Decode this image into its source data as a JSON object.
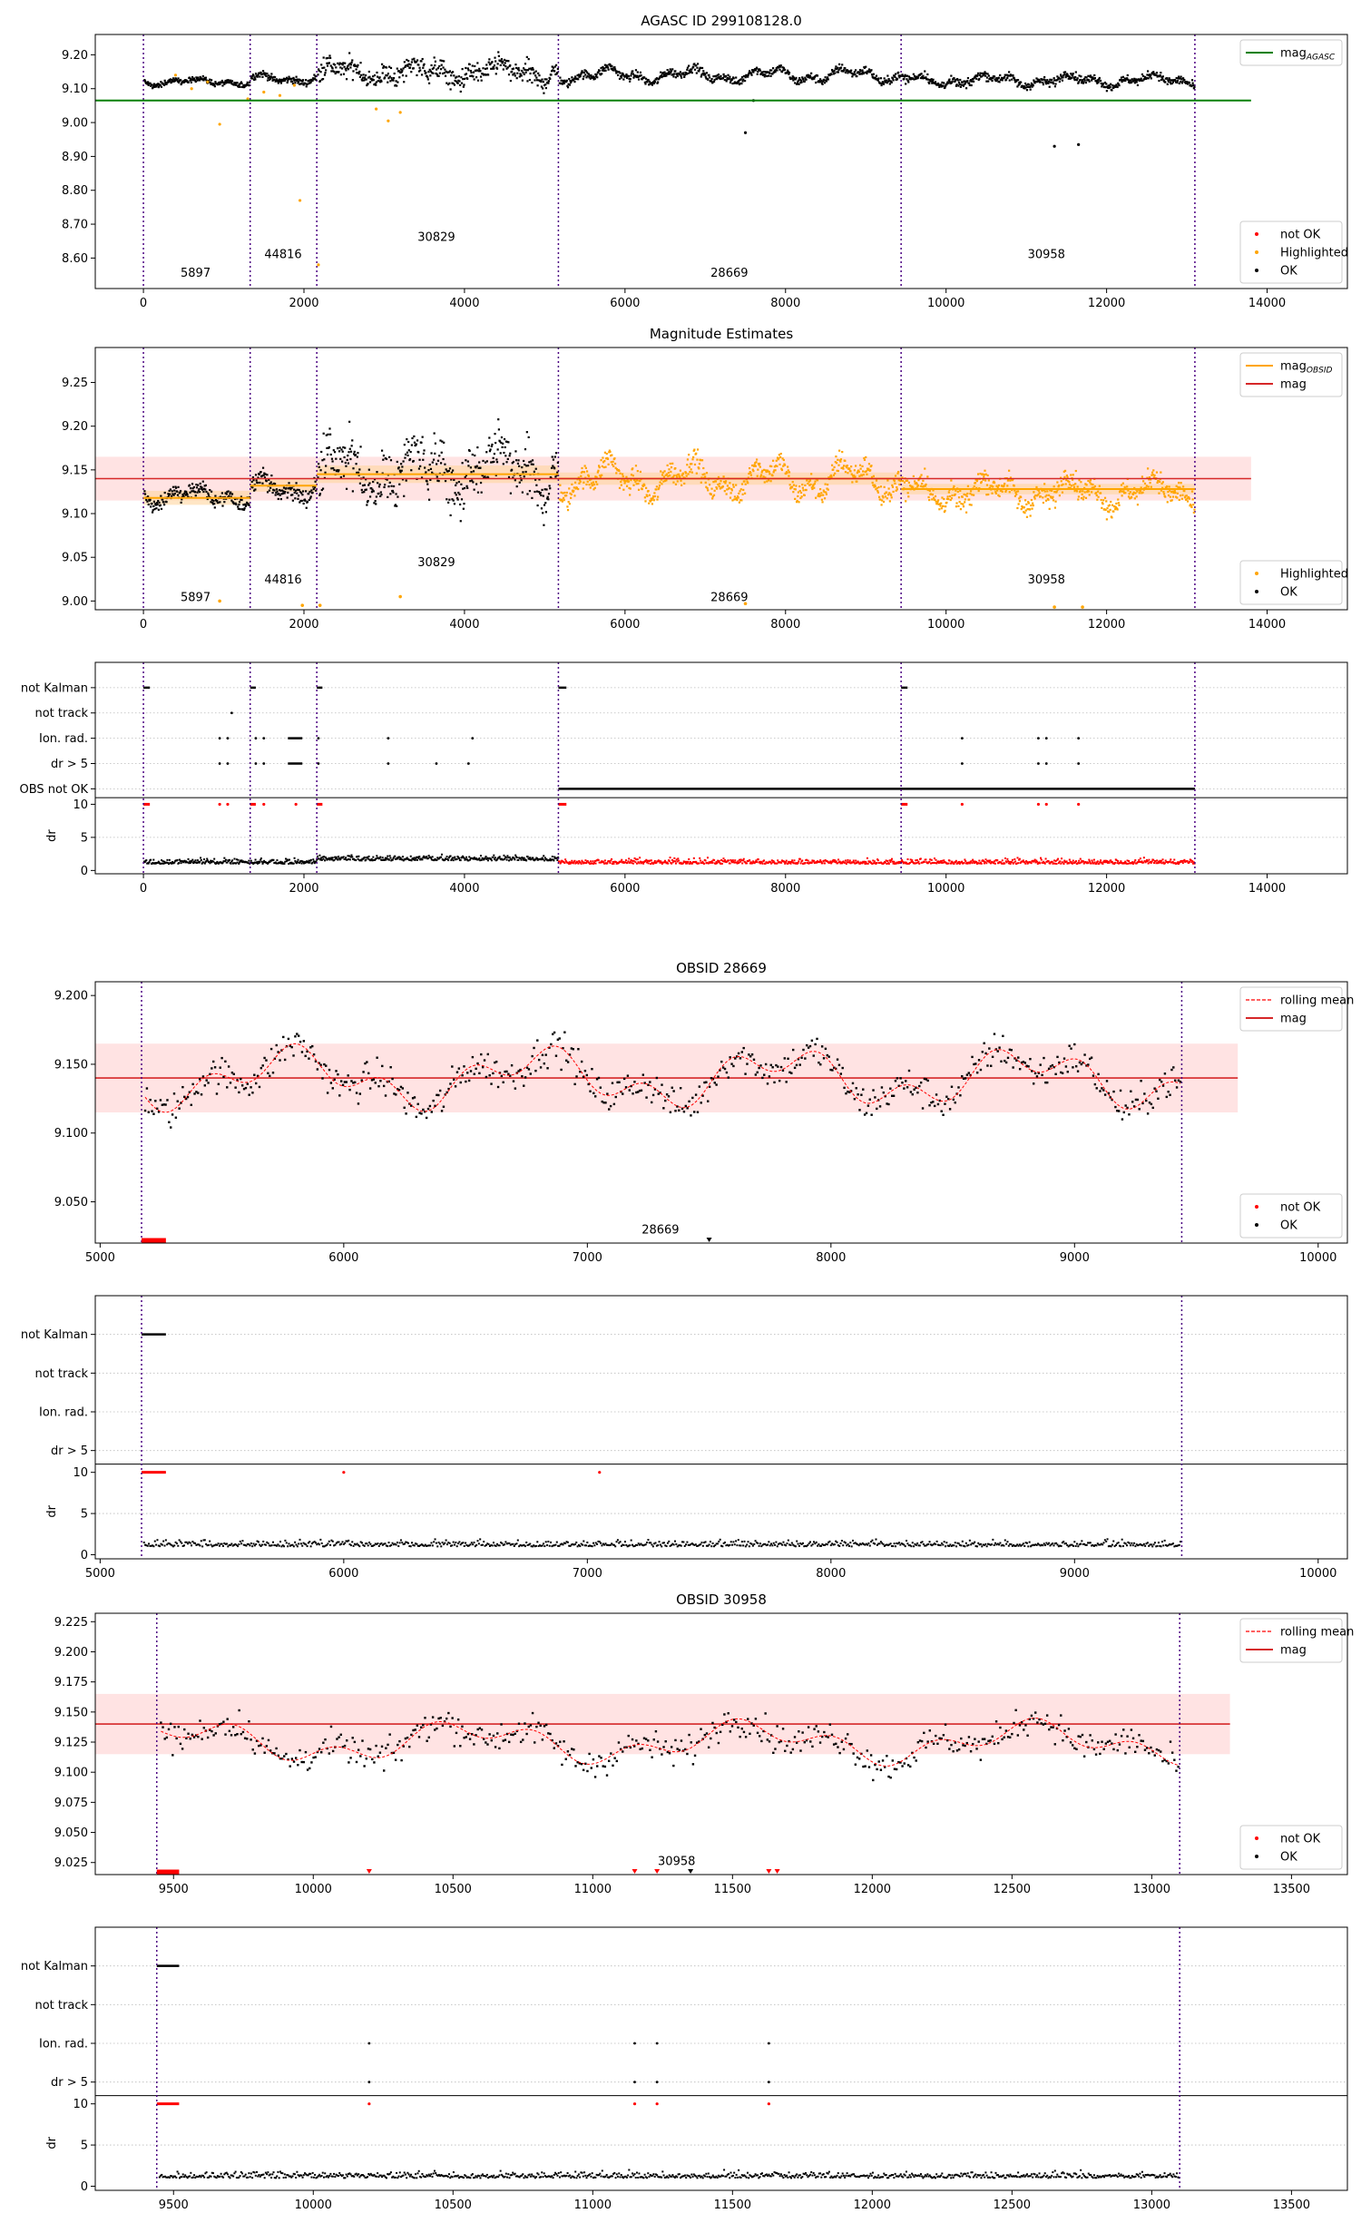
{
  "figure": {
    "title_agasc": "AGASC ID 299108128.0"
  },
  "colors": {
    "ok": "#000000",
    "not_ok": "#ff0000",
    "highlighted": "#ffa500",
    "agasc_line": "#008000",
    "mag_line": "#d62728",
    "obs_boundary": "#4b0082",
    "band": "#ffcccc"
  },
  "observations": [
    {
      "obsid": "5897",
      "start": 0,
      "end": 1330
    },
    {
      "obsid": "44816",
      "start": 1330,
      "end": 2160
    },
    {
      "obsid": "30829",
      "start": 2160,
      "end": 5170
    },
    {
      "obsid": "28669",
      "start": 5170,
      "end": 9440
    },
    {
      "obsid": "30958",
      "start": 9440,
      "end": 13100
    }
  ],
  "chart_data": [
    {
      "type": "scatter",
      "panel": "agasc",
      "title": "AGASC ID 299108128.0",
      "xlim": [
        -600,
        15000
      ],
      "ylim": [
        8.51,
        9.26
      ],
      "xticks": [
        0,
        2000,
        4000,
        6000,
        8000,
        10000,
        12000,
        14000
      ],
      "yticks": [
        8.6,
        8.7,
        8.8,
        8.9,
        9.0,
        9.1,
        9.2
      ],
      "legend_top": {
        "position": "top-right",
        "entries": [
          {
            "label": "mag",
            "sub": "AGASC",
            "kind": "line",
            "color": "#008000"
          }
        ]
      },
      "legend_bottom": {
        "position": "bottom-right",
        "entries": [
          {
            "label": "not OK",
            "kind": "dot",
            "color": "#ff0000"
          },
          {
            "label": "Highlighted",
            "kind": "dot",
            "color": "#ffa500"
          },
          {
            "label": "OK",
            "kind": "dot",
            "color": "#000000"
          }
        ]
      },
      "mag_agasc": 9.065,
      "obs_labels": [
        {
          "text": "5897",
          "x": 650,
          "y": 8.545
        },
        {
          "text": "44816",
          "x": 1740,
          "y": 8.6
        },
        {
          "text": "30829",
          "x": 3650,
          "y": 8.65
        },
        {
          "text": "28669",
          "x": 7300,
          "y": 8.545
        },
        {
          "text": "30958",
          "x": 11250,
          "y": 8.6
        }
      ],
      "series_segments": [
        {
          "start": 0,
          "end": 1330,
          "base": 9.12,
          "amp": 0.012,
          "noise": 0.012
        },
        {
          "start": 1330,
          "end": 2160,
          "base": 9.13,
          "amp": 0.015,
          "noise": 0.015
        },
        {
          "start": 2160,
          "end": 5170,
          "base": 9.148,
          "amp": 0.03,
          "noise": 0.045
        },
        {
          "start": 5170,
          "end": 9440,
          "base": 9.14,
          "amp": 0.025,
          "noise": 0.018
        },
        {
          "start": 9440,
          "end": 13100,
          "base": 9.125,
          "amp": 0.02,
          "noise": 0.018
        }
      ],
      "outliers_highlighted": [
        [
          400,
          9.14
        ],
        [
          600,
          9.1
        ],
        [
          800,
          9.12
        ],
        [
          950,
          8.995
        ],
        [
          1300,
          9.07
        ],
        [
          1500,
          9.09
        ],
        [
          1700,
          9.08
        ],
        [
          1880,
          9.11
        ],
        [
          1950,
          8.77
        ],
        [
          2180,
          8.58
        ],
        [
          2900,
          9.04
        ],
        [
          3200,
          9.03
        ],
        [
          3050,
          9.005
        ]
      ],
      "outliers_ok": [
        [
          7500,
          8.97
        ],
        [
          7600,
          9.065
        ],
        [
          11350,
          8.93
        ],
        [
          11650,
          8.935
        ]
      ]
    },
    {
      "type": "scatter",
      "panel": "estimates",
      "title": "Magnitude Estimates",
      "xlim": [
        -600,
        15000
      ],
      "ylim": [
        8.99,
        9.29
      ],
      "xticks": [
        0,
        2000,
        4000,
        6000,
        8000,
        10000,
        12000,
        14000
      ],
      "yticks": [
        9.0,
        9.05,
        9.1,
        9.15,
        9.2,
        9.25
      ],
      "legend_top": {
        "position": "top-right",
        "entries": [
          {
            "label": "mag",
            "sub": "OBSID",
            "kind": "line",
            "color": "#ffa500"
          },
          {
            "label": "mag",
            "kind": "line",
            "color": "#d62728"
          }
        ]
      },
      "legend_bottom": {
        "position": "bottom-right",
        "entries": [
          {
            "label": "Highlighted",
            "kind": "dot",
            "color": "#ffa500"
          },
          {
            "label": "OK",
            "kind": "dot",
            "color": "#000000"
          }
        ]
      },
      "mag": 9.14,
      "mag_band": [
        9.115,
        9.165
      ],
      "mag_obsid": [
        {
          "start": 0,
          "end": 1330,
          "value": 9.118,
          "lo": 9.11,
          "hi": 9.126
        },
        {
          "start": 1330,
          "end": 2160,
          "value": 9.132,
          "lo": 9.125,
          "hi": 9.14
        },
        {
          "start": 2160,
          "end": 5170,
          "value": 9.145,
          "lo": 9.135,
          "hi": 9.155
        },
        {
          "start": 5170,
          "end": 9440,
          "value": 9.14,
          "lo": 9.133,
          "hi": 9.147
        },
        {
          "start": 9440,
          "end": 13100,
          "value": 9.128,
          "lo": 9.122,
          "hi": 9.134
        }
      ],
      "obs_labels": [
        {
          "text": "5897",
          "x": 650,
          "y": 9.0
        },
        {
          "text": "44816",
          "x": 1740,
          "y": 9.02
        },
        {
          "text": "30829",
          "x": 3650,
          "y": 9.04
        },
        {
          "text": "28669",
          "x": 7300,
          "y": 9.0
        },
        {
          "text": "30958",
          "x": 11250,
          "y": 9.02
        }
      ]
    },
    {
      "type": "flags",
      "panel": "flags_all",
      "xlim": [
        -600,
        15000
      ],
      "xticks": [
        0,
        2000,
        4000,
        6000,
        8000,
        10000,
        12000,
        14000
      ],
      "flag_labels": [
        "not Kalman",
        "not track",
        "Ion. rad.",
        "dr > 5",
        "OBS not OK"
      ],
      "dr_label": "dr",
      "dr_yticks": [
        0,
        5,
        10
      ],
      "dr_ylim": [
        -0.5,
        11
      ]
    },
    {
      "type": "scatter",
      "panel": "obs_28669",
      "title": "OBSID 28669",
      "xlim": [
        4980,
        10120
      ],
      "ylim": [
        9.02,
        9.21
      ],
      "xticks": [
        5000,
        6000,
        7000,
        8000,
        9000,
        10000
      ],
      "yticks": [
        9.05,
        9.1,
        9.15,
        9.2
      ],
      "legend_top": {
        "position": "top-right",
        "entries": [
          {
            "label": "rolling mean",
            "kind": "dash",
            "color": "#ff0000"
          },
          {
            "label": "mag",
            "kind": "line",
            "color": "#d62728"
          }
        ]
      },
      "legend_bottom": {
        "position": "bottom-right",
        "entries": [
          {
            "label": "not OK",
            "kind": "dot",
            "color": "#ff0000"
          },
          {
            "label": "OK",
            "kind": "dot",
            "color": "#000000"
          }
        ]
      },
      "mag": 9.14,
      "mag_band": [
        9.115,
        9.165
      ],
      "obs_label": {
        "text": "28669",
        "x": 7300,
        "y": 9.027
      }
    },
    {
      "type": "flags",
      "panel": "flags_28669",
      "xlim": [
        4980,
        10120
      ],
      "xticks": [
        5000,
        6000,
        7000,
        8000,
        9000,
        10000
      ],
      "flag_labels": [
        "not Kalman",
        "not track",
        "Ion. rad.",
        "dr > 5"
      ],
      "dr_label": "dr",
      "dr_yticks": [
        0,
        5,
        10
      ],
      "dr_ylim": [
        -0.5,
        11
      ]
    },
    {
      "type": "scatter",
      "panel": "obs_30958",
      "title": "OBSID 30958",
      "xlim": [
        9220,
        13700
      ],
      "ylim": [
        9.015,
        9.232
      ],
      "xticks": [
        9500,
        10000,
        10500,
        11000,
        11500,
        12000,
        12500,
        13000,
        13500
      ],
      "yticks": [
        9.025,
        9.05,
        9.075,
        9.1,
        9.125,
        9.15,
        9.175,
        9.2,
        9.225
      ],
      "legend_top": {
        "position": "top-right",
        "entries": [
          {
            "label": "rolling mean",
            "kind": "dash",
            "color": "#ff0000"
          },
          {
            "label": "mag",
            "kind": "line",
            "color": "#d62728"
          }
        ]
      },
      "legend_bottom": {
        "position": "bottom-right",
        "entries": [
          {
            "label": "not OK",
            "kind": "dot",
            "color": "#ff0000"
          },
          {
            "label": "OK",
            "kind": "dot",
            "color": "#000000"
          }
        ]
      },
      "mag": 9.14,
      "mag_band": [
        9.115,
        9.165
      ],
      "obs_label": {
        "text": "30958",
        "x": 11300,
        "y": 9.023
      }
    },
    {
      "type": "flags",
      "panel": "flags_30958",
      "xlim": [
        9220,
        13700
      ],
      "xticks": [
        9500,
        10000,
        10500,
        11000,
        11500,
        12000,
        12500,
        13000,
        13500
      ],
      "flag_labels": [
        "not Kalman",
        "not track",
        "Ion. rad.",
        "dr > 5"
      ],
      "dr_label": "dr",
      "dr_yticks": [
        0,
        5,
        10
      ],
      "dr_ylim": [
        -0.5,
        11
      ]
    }
  ]
}
